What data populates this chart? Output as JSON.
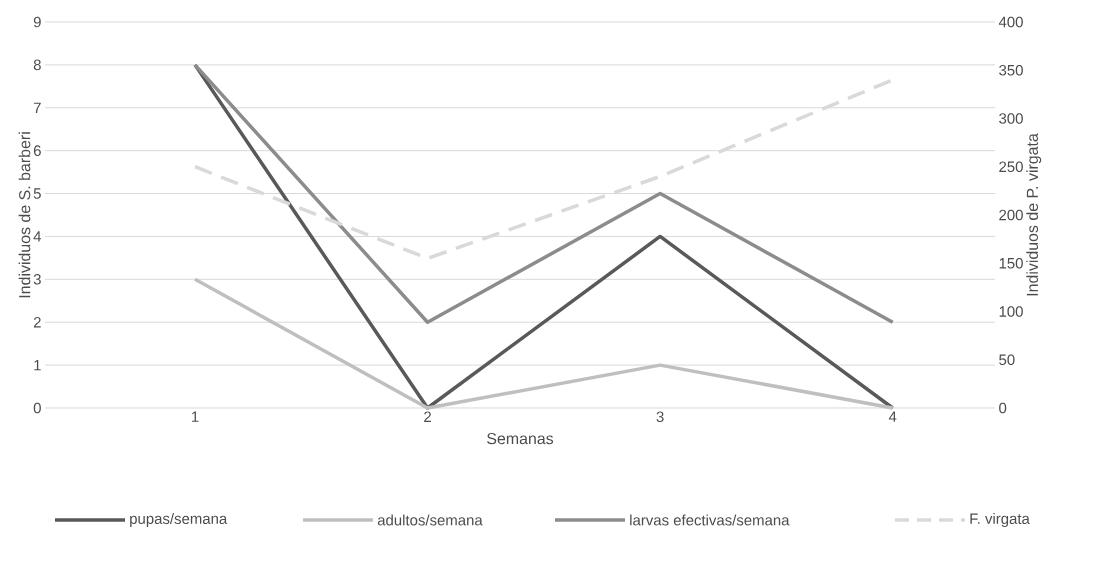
{
  "chart_data": {
    "type": "line",
    "xlabel": "Semanas",
    "ylabel": "Individuos de S. barberi",
    "y2label": "Individuos de P. virgata",
    "categories": [
      "1",
      "2",
      "3",
      "4"
    ],
    "series": [
      {
        "name": "pupas/semana",
        "color": "#595959",
        "values": [
          8,
          0,
          4,
          0
        ]
      },
      {
        "name": "adultos/semana",
        "color": "#bfbfbf",
        "values": [
          3,
          0,
          1,
          0
        ]
      },
      {
        "name": "larvas efectivas/semana",
        "color": "#8c8c8c",
        "values": [
          8,
          2,
          5,
          2
        ]
      },
      {
        "name": "F. virgata",
        "color": "#d9d9d9",
        "values": [
          250,
          155,
          240,
          340
        ],
        "axis": "y2",
        "line_style": "dashed"
      }
    ],
    "ylim": [
      0,
      9
    ],
    "yticks": [
      0,
      1,
      2,
      3,
      4,
      5,
      6,
      7,
      8,
      9
    ],
    "y2lim": [
      0,
      400
    ],
    "y2ticks": [
      0,
      50,
      100,
      150,
      200,
      250,
      300,
      350,
      400
    ],
    "grid": "y",
    "legend": "bottom",
    "marker": "none"
  }
}
